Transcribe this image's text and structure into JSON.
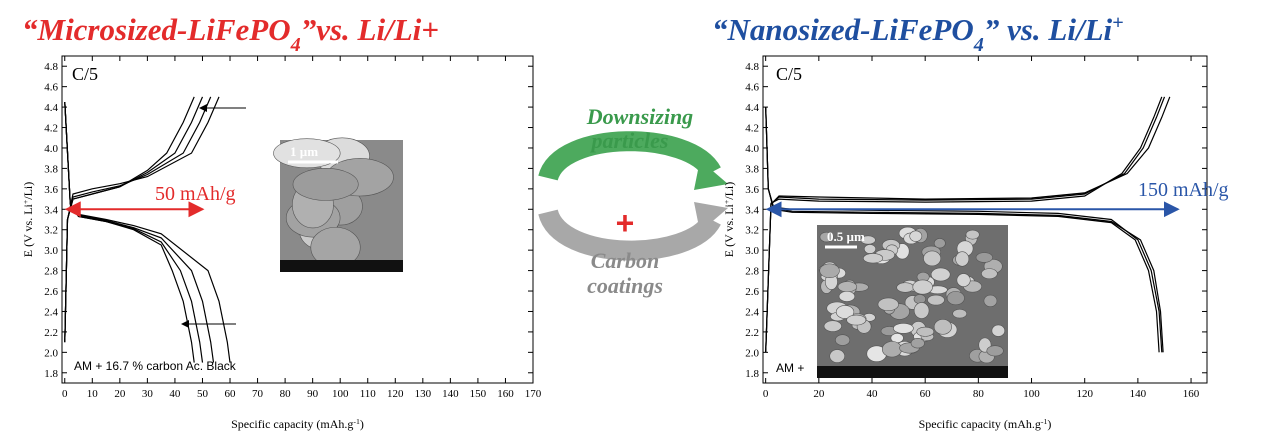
{
  "chart_data": [
    {
      "type": "line",
      "title": [
        {
          "text": "“Microsized-LiFePO"
        },
        {
          "text": "4",
          "shift": "sub"
        },
        {
          "text": "”vs. Li/Li+"
        }
      ],
      "x_label": [
        {
          "text": "Specific capacity (mAh.g"
        },
        {
          "text": "-1",
          "shift": "super"
        },
        {
          "text": ")"
        }
      ],
      "y_label": [
        {
          "text": "E (V vs. Li"
        },
        {
          "text": "+",
          "shift": "super"
        },
        {
          "text": "/Li)"
        }
      ],
      "xlim": [
        -1,
        170
      ],
      "xticks": [
        0,
        10,
        20,
        30,
        40,
        50,
        60,
        70,
        80,
        90,
        100,
        110,
        120,
        130,
        140,
        150,
        160,
        170
      ],
      "ylim": [
        1.7,
        4.9
      ],
      "yticks": [
        1.8,
        {
          "value": 2.0,
          "label": "2.0"
        },
        2.2,
        2.4,
        2.6,
        2.8,
        {
          "value": 3.0,
          "label": "3.0"
        },
        3.2,
        3.4,
        3.6,
        3.8,
        {
          "value": 4.0,
          "label": "4.0"
        },
        4.2,
        4.4,
        4.6,
        4.8
      ],
      "series": [
        {
          "color": "#000000",
          "x": [
            0,
            2,
            5,
            15,
            25,
            35,
            39,
            43,
            46,
            47
          ],
          "values": [
            4.45,
            3.45,
            3.33,
            3.28,
            3.2,
            3.05,
            2.8,
            2.5,
            2.1,
            1.9
          ]
        },
        {
          "color": "#000000",
          "x": [
            0,
            2,
            5,
            15,
            25,
            35,
            42,
            46,
            49,
            50
          ],
          "values": [
            4.45,
            3.45,
            3.33,
            3.28,
            3.21,
            3.08,
            2.8,
            2.5,
            2.1,
            1.9
          ]
        },
        {
          "color": "#000000",
          "x": [
            0,
            2,
            5,
            15,
            25,
            35,
            46,
            50,
            53,
            54
          ],
          "values": [
            4.45,
            3.45,
            3.34,
            3.29,
            3.22,
            3.12,
            2.8,
            2.5,
            2.1,
            1.9
          ]
        },
        {
          "color": "#000000",
          "x": [
            0,
            2,
            5,
            15,
            25,
            35,
            52,
            56,
            59,
            60
          ],
          "values": [
            4.45,
            3.45,
            3.35,
            3.3,
            3.24,
            3.16,
            2.8,
            2.5,
            2.1,
            1.9
          ]
        },
        {
          "color": "#000000",
          "x": [
            0,
            1,
            3,
            10,
            20,
            30,
            37,
            43,
            47
          ],
          "values": [
            2.1,
            3.3,
            3.5,
            3.55,
            3.62,
            3.78,
            3.95,
            4.25,
            4.5
          ]
        },
        {
          "color": "#000000",
          "x": [
            0,
            1,
            3,
            10,
            20,
            30,
            40,
            46,
            50
          ],
          "values": [
            2.1,
            3.3,
            3.5,
            3.55,
            3.62,
            3.76,
            3.95,
            4.25,
            4.5
          ]
        },
        {
          "color": "#000000",
          "x": [
            0,
            1,
            3,
            10,
            20,
            30,
            43,
            49,
            53
          ],
          "values": [
            2.1,
            3.3,
            3.52,
            3.57,
            3.63,
            3.74,
            3.95,
            4.25,
            4.5
          ]
        },
        {
          "color": "#000000",
          "x": [
            0,
            1,
            3,
            10,
            20,
            30,
            46,
            52,
            56
          ],
          "values": [
            2.1,
            3.3,
            3.55,
            3.6,
            3.65,
            3.72,
            3.95,
            4.25,
            4.5
          ]
        }
      ],
      "annotations": {
        "rate": "C/5",
        "capacity": "50 mAh/g",
        "composition": "AM + 16.7 % carbon Ac. Black",
        "scale_bar": "1 µm"
      }
    },
    {
      "type": "line",
      "title": [
        {
          "text": "“Nanosized-LiFePO"
        },
        {
          "text": "4",
          "shift": "sub"
        },
        {
          "text": "” vs. Li/Li"
        },
        {
          "text": "+",
          "shift": "super"
        }
      ],
      "x_label": [
        {
          "text": "Specific capacity (mAh.g"
        },
        {
          "text": "-1",
          "shift": "super"
        },
        {
          "text": ")"
        }
      ],
      "y_label": [
        {
          "text": "E (V vs. Li"
        },
        {
          "text": "+",
          "shift": "super"
        },
        {
          "text": "/Li)"
        }
      ],
      "xlim": [
        -1,
        166
      ],
      "xticks": [
        0,
        20,
        40,
        60,
        80,
        100,
        120,
        140,
        160
      ],
      "ylim": [
        1.7,
        4.9
      ],
      "yticks": [
        1.8,
        {
          "value": 2.0,
          "label": "2.0"
        },
        2.2,
        2.4,
        2.6,
        2.8,
        {
          "value": 3.0,
          "label": "3.0"
        },
        3.2,
        3.4,
        3.6,
        3.8,
        {
          "value": 4.0,
          "label": "4.0"
        },
        4.2,
        4.4,
        4.6,
        4.8
      ],
      "series": [
        {
          "color": "#000000",
          "x": [
            0,
            1,
            3,
            10,
            40,
            80,
            110,
            130,
            140,
            145,
            148,
            149
          ],
          "values": [
            4.4,
            3.6,
            3.42,
            3.4,
            3.39,
            3.38,
            3.36,
            3.3,
            3.1,
            2.8,
            2.4,
            2.0
          ]
        },
        {
          "color": "#000000",
          "x": [
            0,
            1,
            3,
            10,
            40,
            80,
            110,
            130,
            141,
            146,
            148.5,
            149.5
          ],
          "values": [
            4.4,
            3.6,
            3.41,
            3.38,
            3.37,
            3.36,
            3.34,
            3.28,
            3.1,
            2.8,
            2.4,
            2.0
          ]
        },
        {
          "color": "#000000",
          "x": [
            0,
            1,
            3,
            10,
            40,
            80,
            110,
            130,
            139,
            144,
            147,
            148
          ],
          "values": [
            4.4,
            3.6,
            3.4,
            3.37,
            3.36,
            3.35,
            3.33,
            3.27,
            3.1,
            2.8,
            2.4,
            2.0
          ]
        },
        {
          "color": "#000000",
          "x": [
            0,
            2,
            5,
            20,
            60,
            100,
            120,
            135,
            142,
            147,
            150
          ],
          "values": [
            2.0,
            3.45,
            3.52,
            3.5,
            3.49,
            3.5,
            3.55,
            3.75,
            4.0,
            4.3,
            4.5
          ]
        },
        {
          "color": "#000000",
          "x": [
            0,
            2,
            5,
            20,
            60,
            100,
            120,
            136,
            144,
            149,
            152
          ],
          "values": [
            2.0,
            3.45,
            3.53,
            3.52,
            3.5,
            3.51,
            3.56,
            3.75,
            4.0,
            4.3,
            4.5
          ]
        },
        {
          "color": "#000000",
          "x": [
            0,
            2,
            5,
            20,
            60,
            100,
            120,
            134,
            141,
            146,
            149
          ],
          "values": [
            2.0,
            3.46,
            3.5,
            3.48,
            3.47,
            3.48,
            3.53,
            3.75,
            4.0,
            4.3,
            4.5
          ]
        }
      ],
      "annotations": {
        "rate": "C/5",
        "capacity": "150 mAh/g",
        "composition": "AM +",
        "scale_bar": "0.5 µm"
      }
    }
  ],
  "diagram": {
    "top_label": [
      "Downsizing",
      "particles"
    ],
    "plus": "+",
    "bottom_label": [
      "Carbon",
      "coatings"
    ]
  }
}
